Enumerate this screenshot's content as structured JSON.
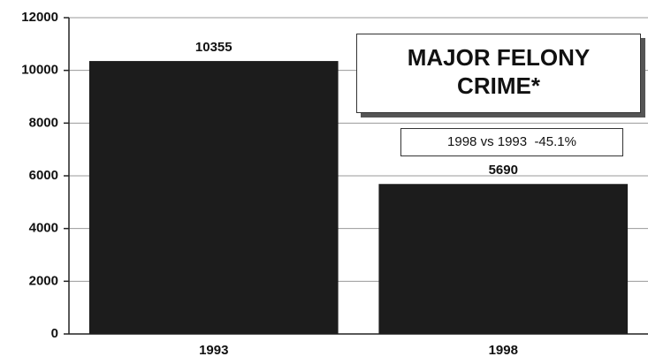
{
  "chart_data": {
    "type": "bar",
    "title": "MAJOR FELONY CRIME*",
    "annotation": "1998 vs 1993  -45.1%",
    "categories": [
      "1993",
      "1998"
    ],
    "values": [
      10355,
      5690
    ],
    "color": "#1c1c1c",
    "ylim": [
      0,
      12000
    ],
    "yticks": [
      0,
      2000,
      4000,
      6000,
      8000,
      10000,
      12000
    ],
    "grid": true
  }
}
